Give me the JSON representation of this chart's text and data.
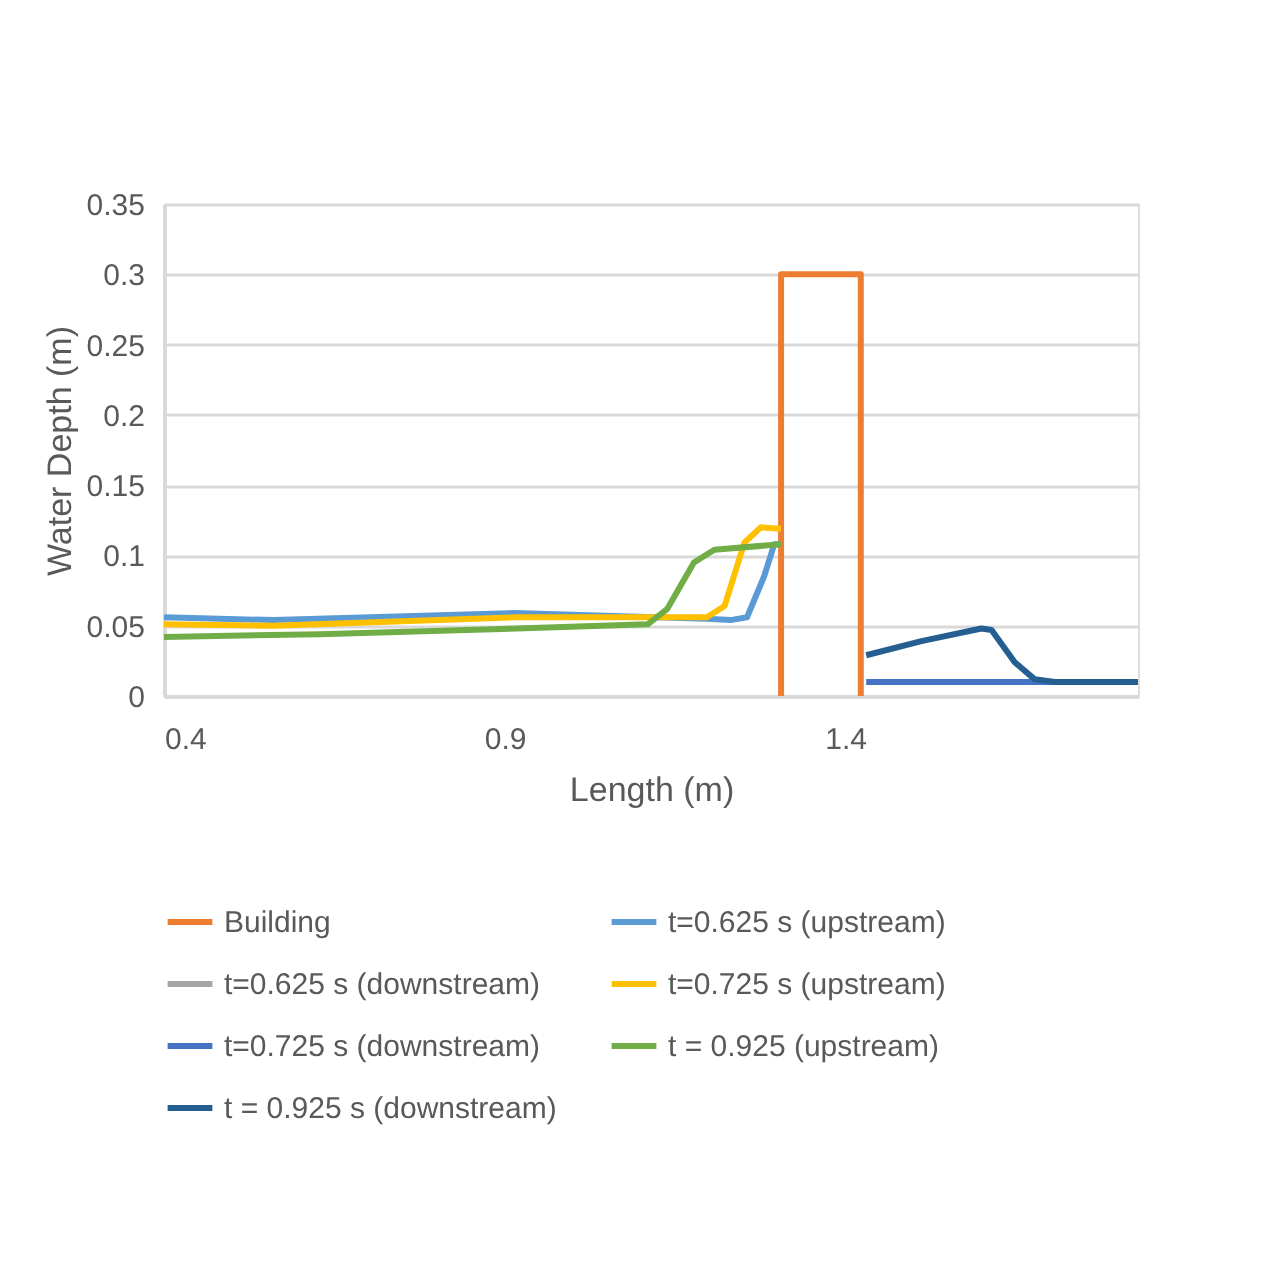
{
  "chart_data": {
    "type": "line",
    "xlabel": "Length (m)",
    "ylabel": "Water Depth (m)",
    "xlim": [
      0.4,
      1.83
    ],
    "xticks": [
      0.4,
      0.9,
      1.4
    ],
    "ylim": [
      0,
      0.35
    ],
    "yticks": [
      0,
      0.05,
      0.1,
      0.15,
      0.2,
      0.25,
      0.3,
      0.35
    ],
    "grid": "y",
    "legend": "bottom",
    "marker": "none",
    "line_style": "solid",
    "series": [
      {
        "name": "Building",
        "color": "#ed7d31",
        "x": [
          1.306,
          1.306,
          1.423,
          1.423
        ],
        "values": [
          0,
          0.3,
          0.3,
          0
        ]
      },
      {
        "name": "t=0.625 s (upstream)",
        "color": "#5b9bd5",
        "x": [
          0.4,
          0.561,
          0.914,
          1.12,
          1.197,
          1.232,
          1.256,
          1.281,
          1.296,
          1.304
        ],
        "values": [
          0.056,
          0.054,
          0.059,
          0.056,
          0.055,
          0.054,
          0.056,
          0.085,
          0.108,
          0.108
        ]
      },
      {
        "name": "t=0.625 s (downstream)",
        "color": "#a5a5a5"
      },
      {
        "name": "t=0.725 s (upstream)",
        "color": "#ffc000",
        "x": [
          0.4,
          0.56,
          0.918,
          1.197,
          1.223,
          1.252,
          1.276,
          1.306
        ],
        "values": [
          0.051,
          0.05,
          0.056,
          0.056,
          0.064,
          0.109,
          0.12,
          0.119
        ]
      },
      {
        "name": "t=0.725 s (downstream)",
        "color": "#4472c4",
        "x": [
          1.431,
          1.83
        ],
        "values": [
          0.01,
          0.01
        ]
      },
      {
        "name": "t = 0.925 (upstream)",
        "color": "#70ad47",
        "x": [
          0.4,
          0.629,
          0.918,
          1.11,
          1.139,
          1.178,
          1.208,
          1.306
        ],
        "values": [
          0.042,
          0.044,
          0.048,
          0.051,
          0.062,
          0.095,
          0.104,
          0.108
        ]
      },
      {
        "name": "t = 0.925 s (downstream)",
        "color": "#255e91",
        "x": [
          1.431,
          1.512,
          1.6,
          1.615,
          1.649,
          1.678,
          1.708,
          1.83
        ],
        "values": [
          0.029,
          0.039,
          0.048,
          0.047,
          0.024,
          0.012,
          0.01,
          0.01
        ]
      }
    ]
  }
}
